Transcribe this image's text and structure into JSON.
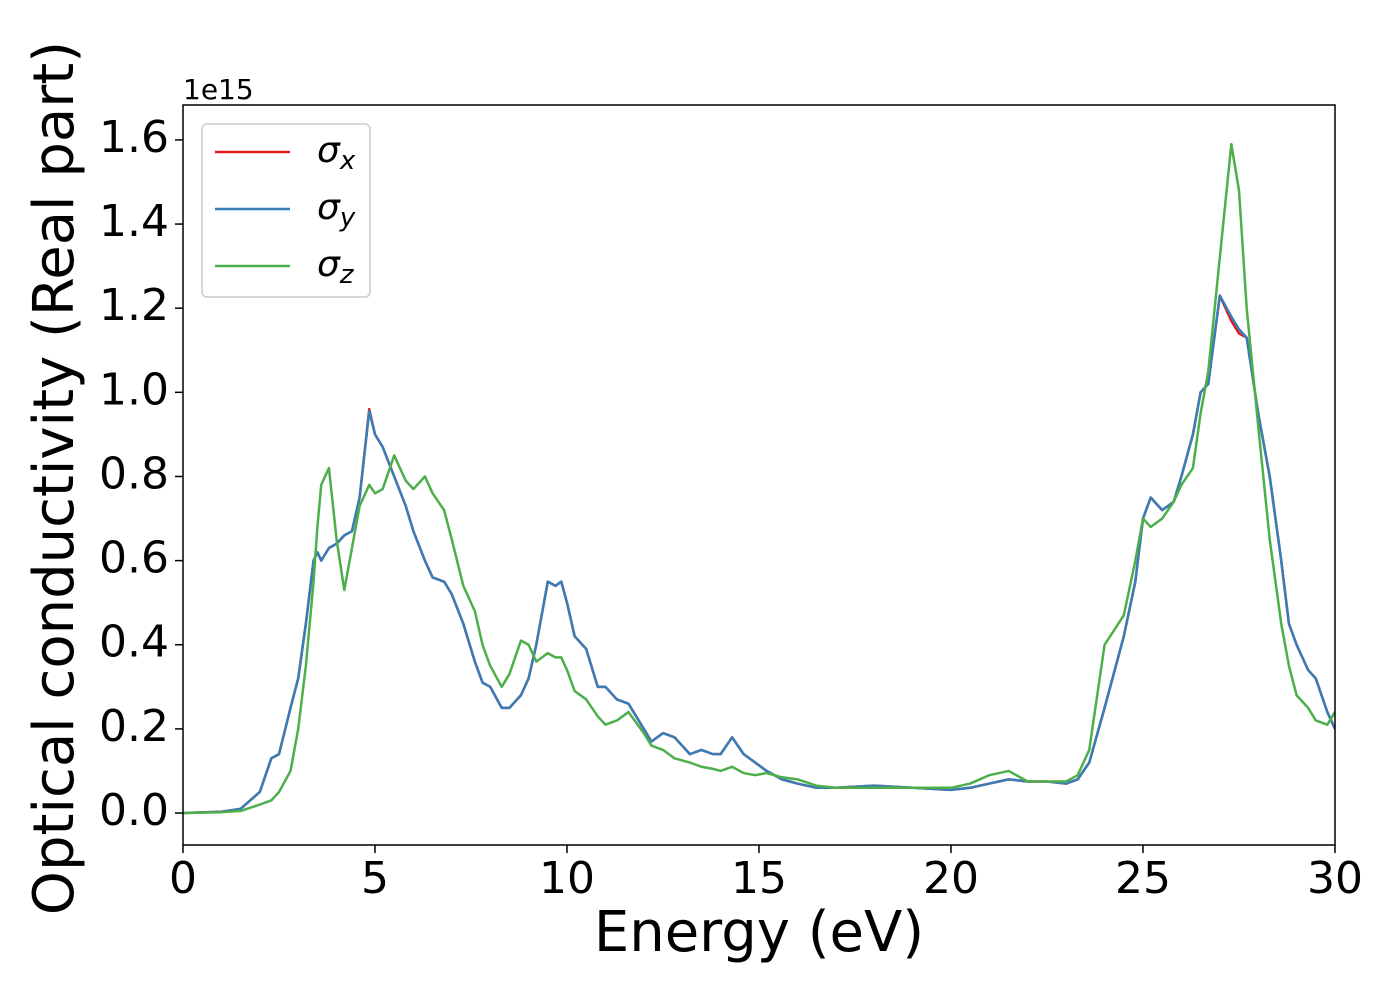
{
  "chart_data": {
    "type": "line",
    "xlabel": "Energy (eV)",
    "ylabel": "Optical conductivity (Real part)",
    "y_offset_label": "1e15",
    "xlim": [
      0,
      30
    ],
    "ylim": [
      -0.076,
      1.683
    ],
    "xticks": [
      0,
      5,
      10,
      15,
      20,
      25,
      30
    ],
    "yticks": [
      {
        "value": 0,
        "label": "0.0"
      },
      0.2,
      0.4,
      0.6,
      0.8,
      {
        "value": 1,
        "label": "1.0"
      },
      1.2,
      1.4,
      1.6
    ],
    "grid": false,
    "legend": "upper left",
    "x": [
      0,
      1,
      1.5,
      2,
      2.3,
      2.5,
      2.8,
      3,
      3.2,
      3.4,
      3.5,
      3.6,
      3.8,
      4,
      4.2,
      4.4,
      4.6,
      4.85,
      5,
      5.2,
      5.5,
      5.8,
      6,
      6.3,
      6.5,
      6.8,
      7,
      7.3,
      7.6,
      7.8,
      8,
      8.3,
      8.5,
      8.8,
      9,
      9.2,
      9.5,
      9.7,
      9.85,
      10,
      10.2,
      10.5,
      10.8,
      11,
      11.3,
      11.6,
      12,
      12.2,
      12.5,
      12.8,
      13,
      13.2,
      13.5,
      13.8,
      14,
      14.3,
      14.6,
      14.9,
      15.2,
      15.6,
      16,
      16.5,
      17,
      18,
      19,
      20,
      20.5,
      21,
      21.5,
      22,
      22.5,
      23,
      23.3,
      23.6,
      24,
      24.5,
      24.8,
      25,
      25.2,
      25.5,
      25.8,
      26,
      26.3,
      26.5,
      26.7,
      27,
      27.3,
      27.5,
      27.7,
      28,
      28.3,
      28.6,
      28.8,
      29,
      29.3,
      29.5,
      29.8,
      30
    ],
    "series": [
      {
        "name": "σx",
        "color": "#e41a1c",
        "values": [
          0,
          0.003,
          0.01,
          0.05,
          0.13,
          0.14,
          0.25,
          0.32,
          0.45,
          0.6,
          0.62,
          0.6,
          0.63,
          0.64,
          0.66,
          0.67,
          0.75,
          0.96,
          0.9,
          0.87,
          0.8,
          0.73,
          0.67,
          0.6,
          0.56,
          0.55,
          0.52,
          0.45,
          0.36,
          0.31,
          0.3,
          0.25,
          0.25,
          0.28,
          0.32,
          0.4,
          0.55,
          0.54,
          0.55,
          0.5,
          0.42,
          0.39,
          0.3,
          0.3,
          0.27,
          0.26,
          0.2,
          0.17,
          0.19,
          0.18,
          0.16,
          0.14,
          0.15,
          0.14,
          0.14,
          0.18,
          0.14,
          0.12,
          0.1,
          0.08,
          0.07,
          0.06,
          0.06,
          0.065,
          0.06,
          0.055,
          0.06,
          0.07,
          0.08,
          0.075,
          0.075,
          0.07,
          0.08,
          0.12,
          0.25,
          0.42,
          0.55,
          0.7,
          0.75,
          0.72,
          0.74,
          0.8,
          0.9,
          1.0,
          1.02,
          1.23,
          1.17,
          1.14,
          1.13,
          0.95,
          0.8,
          0.6,
          0.45,
          0.4,
          0.34,
          0.32,
          0.24,
          0.2
        ]
      },
      {
        "name": "σy",
        "color": "#377eb8",
        "values": [
          0,
          0.003,
          0.01,
          0.05,
          0.13,
          0.14,
          0.25,
          0.32,
          0.45,
          0.6,
          0.62,
          0.6,
          0.63,
          0.64,
          0.66,
          0.67,
          0.75,
          0.955,
          0.9,
          0.87,
          0.8,
          0.73,
          0.67,
          0.6,
          0.56,
          0.55,
          0.52,
          0.45,
          0.36,
          0.31,
          0.3,
          0.25,
          0.25,
          0.28,
          0.32,
          0.4,
          0.55,
          0.54,
          0.55,
          0.5,
          0.42,
          0.39,
          0.3,
          0.3,
          0.27,
          0.26,
          0.2,
          0.17,
          0.19,
          0.18,
          0.16,
          0.14,
          0.15,
          0.14,
          0.14,
          0.18,
          0.14,
          0.12,
          0.1,
          0.08,
          0.07,
          0.06,
          0.06,
          0.065,
          0.06,
          0.055,
          0.06,
          0.07,
          0.08,
          0.075,
          0.075,
          0.07,
          0.08,
          0.12,
          0.25,
          0.42,
          0.55,
          0.7,
          0.75,
          0.72,
          0.74,
          0.8,
          0.9,
          1.0,
          1.02,
          1.23,
          1.18,
          1.15,
          1.13,
          0.95,
          0.8,
          0.6,
          0.45,
          0.4,
          0.34,
          0.32,
          0.24,
          0.2
        ]
      },
      {
        "name": "σz",
        "color": "#4daf4a",
        "values": [
          0,
          0.002,
          0.005,
          0.02,
          0.03,
          0.05,
          0.1,
          0.2,
          0.35,
          0.55,
          0.68,
          0.78,
          0.82,
          0.65,
          0.53,
          0.63,
          0.73,
          0.78,
          0.76,
          0.77,
          0.85,
          0.79,
          0.77,
          0.8,
          0.76,
          0.72,
          0.65,
          0.54,
          0.48,
          0.4,
          0.35,
          0.3,
          0.33,
          0.41,
          0.4,
          0.36,
          0.38,
          0.37,
          0.37,
          0.34,
          0.29,
          0.27,
          0.23,
          0.21,
          0.22,
          0.24,
          0.19,
          0.16,
          0.15,
          0.13,
          0.125,
          0.12,
          0.11,
          0.105,
          0.1,
          0.11,
          0.095,
          0.09,
          0.095,
          0.085,
          0.08,
          0.065,
          0.06,
          0.06,
          0.06,
          0.06,
          0.07,
          0.09,
          0.1,
          0.075,
          0.075,
          0.075,
          0.09,
          0.15,
          0.4,
          0.47,
          0.6,
          0.7,
          0.68,
          0.7,
          0.74,
          0.78,
          0.82,
          0.95,
          1.05,
          1.32,
          1.59,
          1.48,
          1.2,
          0.92,
          0.65,
          0.45,
          0.35,
          0.28,
          0.25,
          0.22,
          0.21,
          0.24
        ]
      }
    ]
  }
}
